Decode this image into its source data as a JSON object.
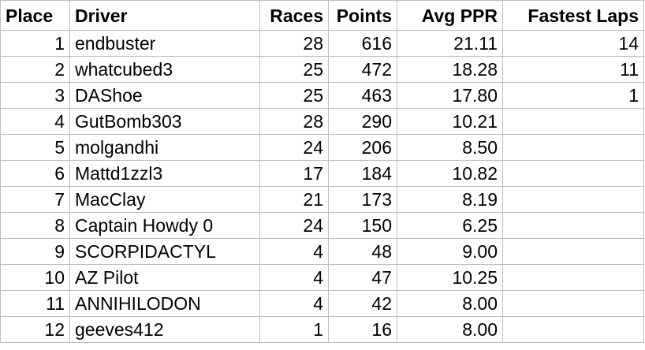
{
  "table": {
    "columns": [
      "Place",
      "Driver",
      "Races",
      "Points",
      "Avg PPR",
      "Fastest Laps"
    ],
    "rows": [
      {
        "place": "1",
        "driver": "endbuster",
        "races": "28",
        "points": "616",
        "avg_ppr": "21.11",
        "fastest_laps": "14"
      },
      {
        "place": "2",
        "driver": "whatcubed3",
        "races": "25",
        "points": "472",
        "avg_ppr": "18.28",
        "fastest_laps": "11"
      },
      {
        "place": "3",
        "driver": "DAShoe",
        "races": "25",
        "points": "463",
        "avg_ppr": "17.80",
        "fastest_laps": "1"
      },
      {
        "place": "4",
        "driver": "GutBomb303",
        "races": "28",
        "points": "290",
        "avg_ppr": "10.21",
        "fastest_laps": ""
      },
      {
        "place": "5",
        "driver": "molgandhi",
        "races": "24",
        "points": "206",
        "avg_ppr": "8.50",
        "fastest_laps": ""
      },
      {
        "place": "6",
        "driver": "Mattd1zzl3",
        "races": "17",
        "points": "184",
        "avg_ppr": "10.82",
        "fastest_laps": ""
      },
      {
        "place": "7",
        "driver": "MacClay",
        "races": "21",
        "points": "173",
        "avg_ppr": "8.19",
        "fastest_laps": ""
      },
      {
        "place": "8",
        "driver": "Captain Howdy 0",
        "races": "24",
        "points": "150",
        "avg_ppr": "6.25",
        "fastest_laps": ""
      },
      {
        "place": "9",
        "driver": "SCORPIDACTYL",
        "races": "4",
        "points": "48",
        "avg_ppr": "9.00",
        "fastest_laps": ""
      },
      {
        "place": "10",
        "driver": "AZ Pilot",
        "races": "4",
        "points": "47",
        "avg_ppr": "10.25",
        "fastest_laps": ""
      },
      {
        "place": "11",
        "driver": "ANNIHILODON",
        "races": "4",
        "points": "42",
        "avg_ppr": "8.00",
        "fastest_laps": ""
      },
      {
        "place": "12",
        "driver": "geeves412",
        "races": "1",
        "points": "16",
        "avg_ppr": "8.00",
        "fastest_laps": ""
      }
    ]
  }
}
